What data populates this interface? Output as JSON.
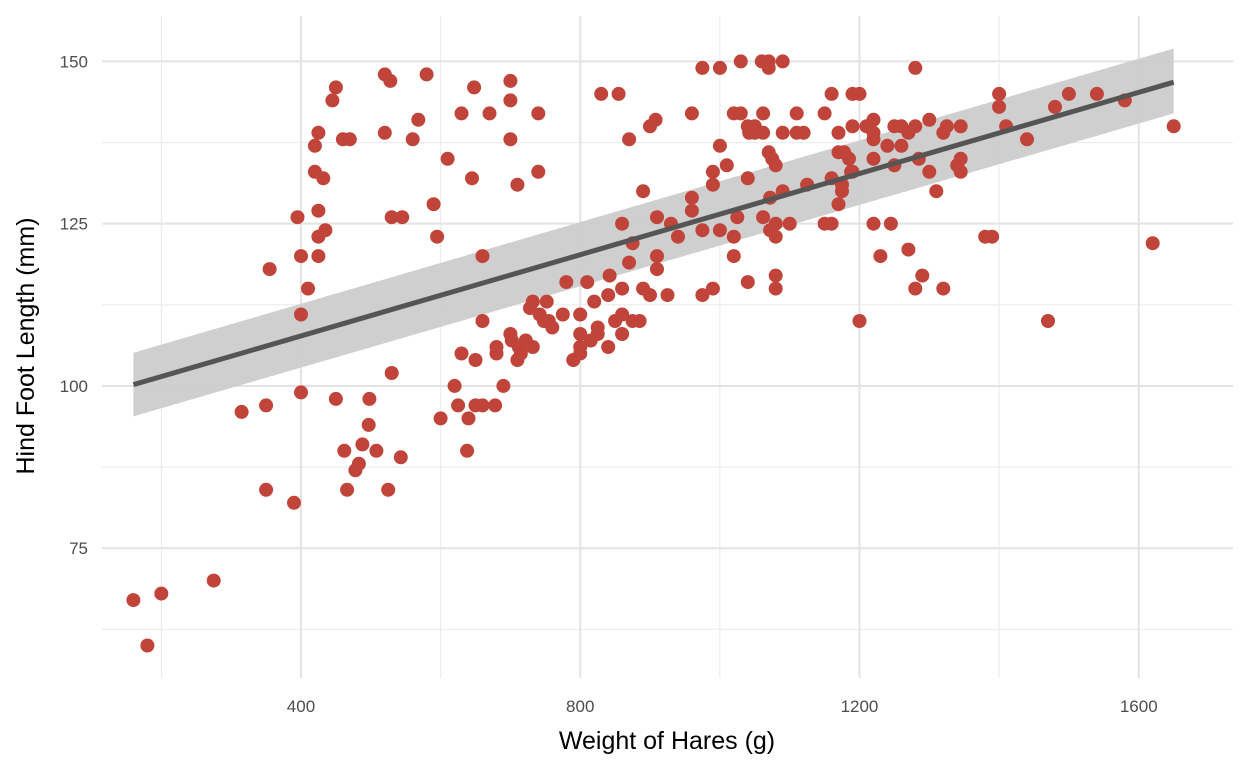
{
  "chart_data": {
    "type": "scatter",
    "title": "",
    "xlabel": "Weight of Hares (g)",
    "ylabel": "Hind Foot Length (mm)",
    "xlim": [
      115,
      1735
    ],
    "ylim": [
      55,
      157
    ],
    "x_ticks": [
      400,
      800,
      1200,
      1600
    ],
    "x_tick_labels": [
      "400",
      "800",
      "1200",
      "1600"
    ],
    "x_minor_ticks": [
      200,
      600,
      1000,
      1400
    ],
    "y_ticks": [
      75,
      100,
      125,
      150
    ],
    "y_tick_labels": [
      "75",
      "100",
      "125",
      "150"
    ],
    "y_minor_ticks": [
      62.5,
      87.5,
      112.5,
      137.5
    ],
    "grid": true,
    "point_color": "#c0443a",
    "fit": {
      "method": "linear",
      "x": [
        160,
        1650
      ],
      "y": [
        100.2,
        146.8
      ],
      "ci_lower": [
        95.3,
        142.0
      ],
      "ci_upper": [
        105.1,
        152.0
      ],
      "line_color": "#555555",
      "band_color": "#cccccc"
    },
    "points": [
      [
        160,
        67
      ],
      [
        180,
        60
      ],
      [
        200,
        68
      ],
      [
        275,
        70
      ],
      [
        315,
        96
      ],
      [
        350,
        84
      ],
      [
        350,
        97
      ],
      [
        355,
        118
      ],
      [
        390,
        82
      ],
      [
        395,
        126
      ],
      [
        400,
        120
      ],
      [
        400,
        111
      ],
      [
        400,
        99
      ],
      [
        410,
        115
      ],
      [
        420,
        137
      ],
      [
        420,
        133
      ],
      [
        425,
        139
      ],
      [
        425,
        127
      ],
      [
        425,
        123
      ],
      [
        425,
        120
      ],
      [
        432,
        132
      ],
      [
        435,
        124
      ],
      [
        445,
        144
      ],
      [
        450,
        146
      ],
      [
        450,
        98
      ],
      [
        460,
        138
      ],
      [
        462,
        90
      ],
      [
        466,
        84
      ],
      [
        470,
        138
      ],
      [
        478,
        87
      ],
      [
        483,
        88
      ],
      [
        488,
        91
      ],
      [
        497,
        94
      ],
      [
        498,
        98
      ],
      [
        508,
        90
      ],
      [
        520,
        148
      ],
      [
        520,
        139
      ],
      [
        525,
        84
      ],
      [
        528,
        147
      ],
      [
        530,
        126
      ],
      [
        530,
        102
      ],
      [
        543,
        89
      ],
      [
        545,
        126
      ],
      [
        560,
        138
      ],
      [
        568,
        141
      ],
      [
        580,
        148
      ],
      [
        590,
        128
      ],
      [
        595,
        123
      ],
      [
        600,
        95
      ],
      [
        610,
        135
      ],
      [
        620,
        100
      ],
      [
        625,
        97
      ],
      [
        630,
        142
      ],
      [
        630,
        105
      ],
      [
        638,
        90
      ],
      [
        640,
        95
      ],
      [
        645,
        132
      ],
      [
        648,
        146
      ],
      [
        650,
        97
      ],
      [
        650,
        104
      ],
      [
        660,
        120
      ],
      [
        660,
        110
      ],
      [
        660,
        97
      ],
      [
        670,
        142
      ],
      [
        678,
        97
      ],
      [
        680,
        106
      ],
      [
        680,
        105
      ],
      [
        690,
        100
      ],
      [
        700,
        147
      ],
      [
        700,
        144
      ],
      [
        700,
        138
      ],
      [
        700,
        108
      ],
      [
        702,
        107
      ],
      [
        710,
        131
      ],
      [
        710,
        104
      ],
      [
        712,
        106
      ],
      [
        715,
        105
      ],
      [
        722,
        107
      ],
      [
        728,
        112
      ],
      [
        732,
        113
      ],
      [
        732,
        106
      ],
      [
        740,
        142
      ],
      [
        740,
        133
      ],
      [
        742,
        111
      ],
      [
        748,
        110
      ],
      [
        752,
        113
      ],
      [
        755,
        110
      ],
      [
        760,
        109
      ],
      [
        775,
        111
      ],
      [
        780,
        116
      ],
      [
        790,
        104
      ],
      [
        800,
        111
      ],
      [
        800,
        108
      ],
      [
        800,
        106
      ],
      [
        800,
        105
      ],
      [
        810,
        116
      ],
      [
        815,
        107
      ],
      [
        820,
        113
      ],
      [
        825,
        109
      ],
      [
        825,
        108
      ],
      [
        830,
        145
      ],
      [
        840,
        114
      ],
      [
        840,
        106
      ],
      [
        842,
        117
      ],
      [
        850,
        110
      ],
      [
        855,
        145
      ],
      [
        860,
        125
      ],
      [
        860,
        115
      ],
      [
        860,
        111
      ],
      [
        860,
        108
      ],
      [
        870,
        138
      ],
      [
        870,
        119
      ],
      [
        875,
        122
      ],
      [
        875,
        110
      ],
      [
        885,
        110
      ],
      [
        890,
        130
      ],
      [
        890,
        115
      ],
      [
        900,
        140
      ],
      [
        900,
        114
      ],
      [
        908,
        141
      ],
      [
        910,
        126
      ],
      [
        910,
        120
      ],
      [
        910,
        118
      ],
      [
        925,
        114
      ],
      [
        930,
        125
      ],
      [
        940,
        123
      ],
      [
        960,
        142
      ],
      [
        960,
        129
      ],
      [
        960,
        127
      ],
      [
        975,
        149
      ],
      [
        975,
        124
      ],
      [
        975,
        114
      ],
      [
        990,
        133
      ],
      [
        990,
        131
      ],
      [
        990,
        115
      ],
      [
        1000,
        149
      ],
      [
        1000,
        137
      ],
      [
        1000,
        124
      ],
      [
        1010,
        134
      ],
      [
        1020,
        142
      ],
      [
        1020,
        123
      ],
      [
        1020,
        120
      ],
      [
        1025,
        126
      ],
      [
        1030,
        150
      ],
      [
        1030,
        142
      ],
      [
        1040,
        140
      ],
      [
        1040,
        132
      ],
      [
        1040,
        116
      ],
      [
        1042,
        139
      ],
      [
        1050,
        140
      ],
      [
        1050,
        139
      ],
      [
        1060,
        150
      ],
      [
        1062,
        142
      ],
      [
        1062,
        139
      ],
      [
        1062,
        126
      ],
      [
        1070,
        150
      ],
      [
        1070,
        149
      ],
      [
        1070,
        136
      ],
      [
        1072,
        129
      ],
      [
        1072,
        124
      ],
      [
        1075,
        135
      ],
      [
        1080,
        134
      ],
      [
        1080,
        125
      ],
      [
        1080,
        123
      ],
      [
        1080,
        117
      ],
      [
        1080,
        115
      ],
      [
        1090,
        150
      ],
      [
        1090,
        139
      ],
      [
        1090,
        130
      ],
      [
        1100,
        125
      ],
      [
        1110,
        142
      ],
      [
        1110,
        139
      ],
      [
        1120,
        139
      ],
      [
        1125,
        131
      ],
      [
        1150,
        142
      ],
      [
        1150,
        125
      ],
      [
        1160,
        145
      ],
      [
        1160,
        132
      ],
      [
        1160,
        125
      ],
      [
        1170,
        139
      ],
      [
        1170,
        136
      ],
      [
        1170,
        128
      ],
      [
        1175,
        131
      ],
      [
        1175,
        130
      ],
      [
        1178,
        136
      ],
      [
        1185,
        135
      ],
      [
        1188,
        133
      ],
      [
        1190,
        145
      ],
      [
        1190,
        140
      ],
      [
        1190,
        133
      ],
      [
        1200,
        145
      ],
      [
        1200,
        110
      ],
      [
        1210,
        140
      ],
      [
        1220,
        141
      ],
      [
        1220,
        139
      ],
      [
        1220,
        138
      ],
      [
        1220,
        135
      ],
      [
        1220,
        125
      ],
      [
        1230,
        120
      ],
      [
        1240,
        137
      ],
      [
        1245,
        125
      ],
      [
        1250,
        140
      ],
      [
        1250,
        134
      ],
      [
        1260,
        140
      ],
      [
        1260,
        137
      ],
      [
        1270,
        139
      ],
      [
        1270,
        121
      ],
      [
        1280,
        149
      ],
      [
        1280,
        140
      ],
      [
        1280,
        115
      ],
      [
        1285,
        135
      ],
      [
        1290,
        117
      ],
      [
        1300,
        141
      ],
      [
        1300,
        133
      ],
      [
        1310,
        130
      ],
      [
        1320,
        139
      ],
      [
        1320,
        115
      ],
      [
        1325,
        140
      ],
      [
        1340,
        134
      ],
      [
        1345,
        140
      ],
      [
        1345,
        135
      ],
      [
        1345,
        133
      ],
      [
        1380,
        123
      ],
      [
        1390,
        123
      ],
      [
        1400,
        145
      ],
      [
        1400,
        143
      ],
      [
        1410,
        140
      ],
      [
        1440,
        138
      ],
      [
        1470,
        110
      ],
      [
        1480,
        143
      ],
      [
        1500,
        145
      ],
      [
        1540,
        145
      ],
      [
        1580,
        144
      ],
      [
        1620,
        122
      ],
      [
        1650,
        140
      ]
    ]
  }
}
